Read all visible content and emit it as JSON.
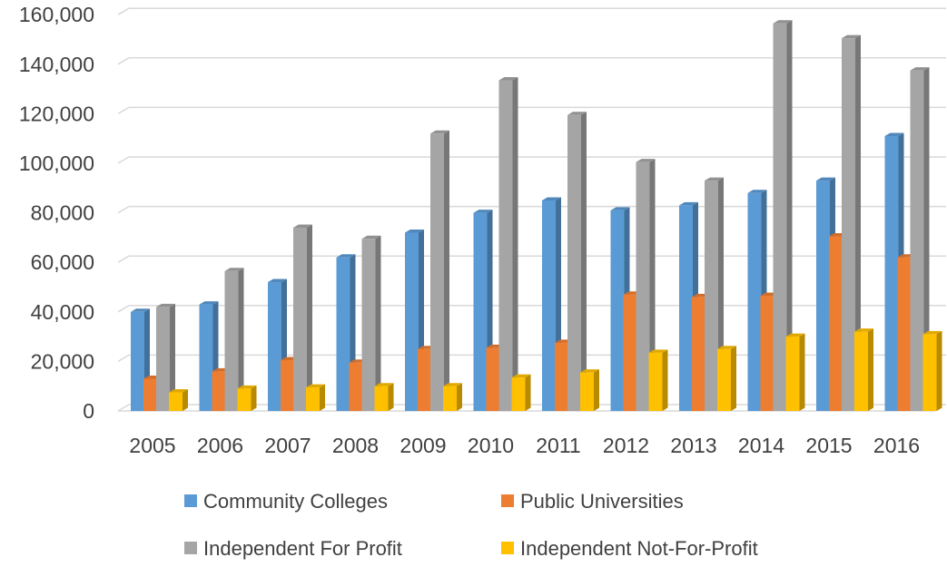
{
  "chart_data": {
    "type": "bar",
    "style": "3d-clustered-column",
    "categories": [
      "2005",
      "2006",
      "2007",
      "2008",
      "2009",
      "2010",
      "2011",
      "2012",
      "2013",
      "2014",
      "2015",
      "2016"
    ],
    "series": [
      {
        "name": "Community Colleges",
        "color": "#5B9BD5",
        "values": [
          40000,
          43000,
          52000,
          62000,
          72000,
          80000,
          85000,
          81000,
          83000,
          88000,
          93000,
          111000
        ]
      },
      {
        "name": "Public Universities",
        "color": "#ED7D31",
        "values": [
          13000,
          16000,
          20500,
          19500,
          25000,
          25500,
          27500,
          47000,
          46000,
          46500,
          70500,
          62000
        ]
      },
      {
        "name": "Independent For Profit",
        "color": "#A5A5A5",
        "values": [
          42000,
          56500,
          74000,
          69500,
          112000,
          133500,
          119500,
          100500,
          93000,
          156500,
          150500,
          137500
        ]
      },
      {
        "name": "Independent Not-For-Profit",
        "color": "#FFC000",
        "values": [
          7500,
          9000,
          9500,
          10000,
          10000,
          13500,
          15500,
          23500,
          25000,
          30000,
          32000,
          31000
        ]
      }
    ],
    "ylim": [
      0,
      160000
    ],
    "yticks": [
      0,
      20000,
      40000,
      60000,
      80000,
      100000,
      120000,
      140000,
      160000
    ],
    "ytick_labels": [
      "0",
      "20,000",
      "40,000",
      "60,000",
      "80,000",
      "100,000",
      "120,000",
      "140,000",
      "160,000"
    ],
    "grid": true,
    "legend_position": "bottom"
  }
}
